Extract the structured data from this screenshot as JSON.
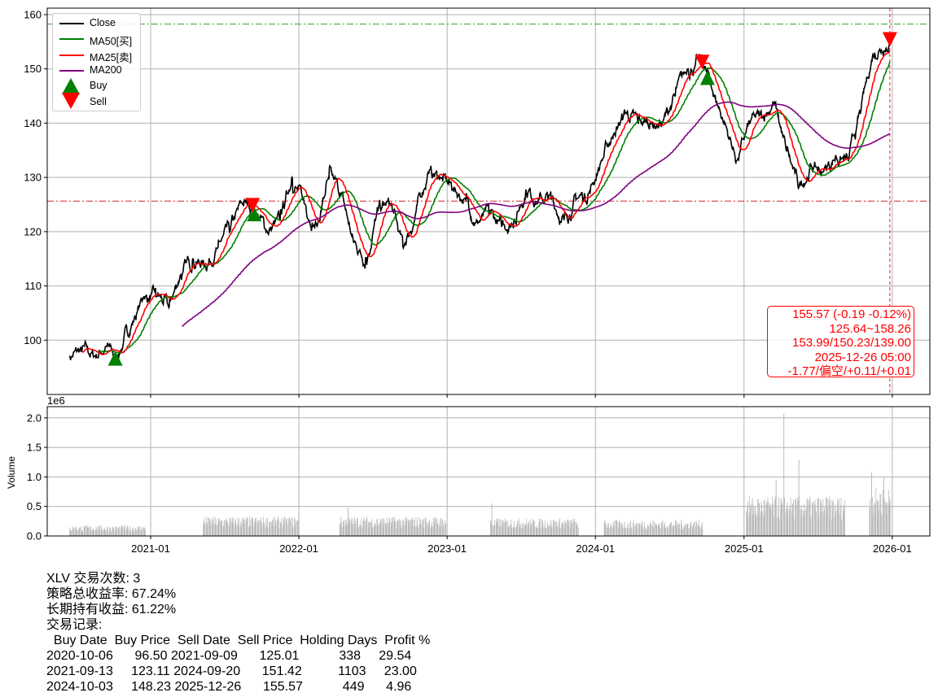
{
  "chart_data": [
    {
      "type": "line",
      "panel": "price",
      "ylim": [
        90.0,
        161.2
      ],
      "yticks": [
        100,
        110,
        120,
        130,
        140,
        150,
        160
      ],
      "grid": true,
      "legend_placement": "top-left",
      "legend": [
        {
          "label": "Close",
          "color": "#000000",
          "kind": "line"
        },
        {
          "label": "MA50[买]",
          "color": "#008000",
          "kind": "line"
        },
        {
          "label": "MA25[卖]",
          "color": "#ff0000",
          "kind": "line"
        },
        {
          "label": "MA200",
          "color": "#800080",
          "kind": "line"
        },
        {
          "label": "Buy",
          "color": "#008000",
          "kind": "triangle-up"
        },
        {
          "label": "Sell",
          "color": "#ff0000",
          "kind": "triangle-down"
        }
      ],
      "close_monthly": {
        "dates": [
          "2020-06-15",
          "2020-07-15",
          "2020-08-15",
          "2020-09-15",
          "2020-10-06",
          "2020-11-15",
          "2020-12-15",
          "2021-01-15",
          "2021-02-15",
          "2021-03-15",
          "2021-04-15",
          "2021-05-15",
          "2021-06-15",
          "2021-07-15",
          "2021-08-15",
          "2021-09-09",
          "2021-10-15",
          "2021-11-15",
          "2021-12-15",
          "2022-01-15",
          "2022-02-15",
          "2022-03-15",
          "2022-04-15",
          "2022-05-15",
          "2022-06-15",
          "2022-07-15",
          "2022-08-15",
          "2022-09-15",
          "2022-10-15",
          "2022-11-15",
          "2022-12-15",
          "2023-01-15",
          "2023-02-15",
          "2023-03-15",
          "2023-04-15",
          "2023-05-15",
          "2023-06-15",
          "2023-07-15",
          "2023-08-15",
          "2023-09-15",
          "2023-10-15",
          "2023-11-15",
          "2023-12-15",
          "2024-01-15",
          "2024-02-15",
          "2024-03-15",
          "2024-04-15",
          "2024-05-15",
          "2024-06-15",
          "2024-07-15",
          "2024-08-15",
          "2024-09-20",
          "2024-10-15",
          "2024-11-15",
          "2024-12-15",
          "2025-01-15",
          "2025-02-15",
          "2025-03-15",
          "2025-04-15",
          "2025-05-15",
          "2025-06-15",
          "2025-07-15",
          "2025-08-15",
          "2025-09-15",
          "2025-10-15",
          "2025-11-15",
          "2025-12-26"
        ],
        "values": [
          97,
          98,
          97,
          99,
          96.5,
          103,
          108,
          108,
          106,
          112,
          115,
          114,
          117,
          120,
          125,
          125.01,
          120,
          122,
          130,
          125,
          121,
          130,
          127,
          118,
          115,
          124,
          125,
          117,
          123,
          131,
          130,
          128,
          126,
          122,
          123,
          121,
          122,
          128,
          126,
          126,
          122,
          126,
          127,
          133,
          138,
          142,
          140,
          140,
          140,
          145,
          150,
          151.42,
          146,
          140,
          133,
          140,
          141,
          144,
          135,
          128,
          132,
          131,
          134,
          133,
          142,
          153,
          155.57
        ]
      },
      "ma_windows": {
        "MA25": 25,
        "MA50": 50,
        "MA200": 200
      },
      "buys": [
        {
          "date": "2020-10-06",
          "price": 96.5
        },
        {
          "date": "2021-09-13",
          "price": 123.11
        },
        {
          "date": "2024-10-03",
          "price": 148.23
        }
      ],
      "sells": [
        {
          "date": "2021-09-09",
          "price": 125.01
        },
        {
          "date": "2024-09-20",
          "price": 151.42
        },
        {
          "date": "2025-12-26",
          "price": 155.57
        }
      ],
      "hlines": [
        {
          "value": 158.26,
          "color": "#2ca02c",
          "style": "dashdot"
        },
        {
          "value": 125.64,
          "color": "#d62728",
          "style": "dashdot"
        }
      ],
      "vline": {
        "date": "2025-12-26",
        "color": "#d62728",
        "style": "dashed"
      },
      "annotation": [
        "155.57 (-0.19 -0.12%)",
        "125.64~158.26",
        "153.99/150.23/139.00",
        "2025-12-26 05:00",
        "-1.77/偏空/+0.11/+0.01"
      ]
    },
    {
      "type": "bar",
      "panel": "volume",
      "ylabel": "Volume",
      "offset_label": "1e6",
      "ylim": [
        0,
        2.19
      ],
      "yticks": [
        "0.0",
        "0.5",
        "1.0",
        "1.5",
        "2.0"
      ],
      "ytick_values": [
        0,
        0.5,
        1.0,
        1.5,
        2.0
      ],
      "color": "#bbbbbb",
      "grid": true,
      "segments": [
        {
          "start": "2020-06-15",
          "end": "2020-12-20",
          "level": 0.12
        },
        {
          "start": "2021-05-10",
          "end": "2021-12-31",
          "level": 0.22
        },
        {
          "start": "2022-04-10",
          "end": "2022-12-28",
          "level": 0.22
        },
        {
          "start": "2023-04-15",
          "end": "2023-11-20",
          "level": 0.2
        },
        {
          "start": "2024-01-20",
          "end": "2024-09-20",
          "level": 0.18
        },
        {
          "start": "2025-01-05",
          "end": "2025-09-05",
          "level": 0.45
        },
        {
          "start": "2025-11-05",
          "end": "2025-12-26",
          "level": 0.55
        }
      ],
      "spikes": [
        {
          "date": "2025-04-08",
          "value": 2.07
        },
        {
          "date": "2025-05-15",
          "value": 1.29
        },
        {
          "date": "2025-03-20",
          "value": 0.95
        },
        {
          "date": "2025-11-10",
          "value": 1.08
        },
        {
          "date": "2025-12-10",
          "value": 0.99
        },
        {
          "date": "2023-04-20",
          "value": 0.55
        },
        {
          "date": "2022-05-01",
          "value": 0.48
        }
      ]
    }
  ],
  "xticks": [
    "2021-01",
    "2022-01",
    "2023-01",
    "2024-01",
    "2025-01",
    "2026-01"
  ],
  "summary": {
    "line1": "XLV 交易次数: 3",
    "line2": "策略总收益率: 67.24%",
    "line3": "长期持有收益: 61.22%",
    "line4": "交易记录:",
    "table_header": "  Buy Date  Buy Price  Sell Date  Sell Price  Holding Days  Profit %",
    "rows": [
      "2020-10-06      96.50 2021-09-09      125.01           338     29.54",
      "2021-09-13     123.11 2024-09-20      151.42          1103     23.00",
      "2024-10-03     148.23 2025-12-26      155.57           449      4.96"
    ]
  }
}
